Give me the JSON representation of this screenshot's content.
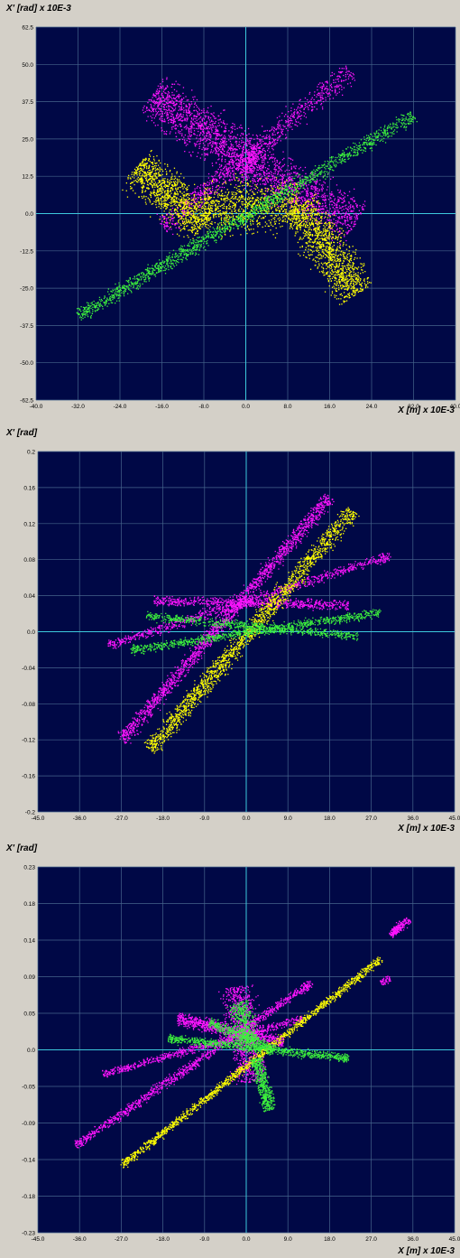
{
  "colors": {
    "background": "#d4d0c8",
    "plot_area": "#000846",
    "grid": "#46648c",
    "axis": "#3cc8dc",
    "magenta": "#ff14ff",
    "yellow": "#ffff00",
    "green": "#3cf03c"
  },
  "chart_data": [
    {
      "type": "scatter",
      "ylabel": "X' [rad] x 10E-3",
      "xlabel": "X [m] x 10E-3",
      "xlim": [
        -40,
        40
      ],
      "ylim": [
        -62.5,
        62.5
      ],
      "x_ticks": [
        "-40.0",
        "-32.0",
        "-24.0",
        "-16.0",
        "-8.0",
        "0.0",
        "8.0",
        "16.0",
        "24.0",
        "32.0",
        "40.0"
      ],
      "y_ticks": [
        "62.5",
        "50.0",
        "37.5",
        "25.0",
        "12.5",
        "0.0",
        "-12.5",
        "-25.0",
        "-37.5",
        "-50.0",
        "-62.5"
      ],
      "grid": true,
      "series": [
        {
          "color": "magenta",
          "clusters": [
            {
              "type": "band",
              "from": [
                -18,
                40
              ],
              "to": [
                2,
                16
              ],
              "width": 11,
              "n": 1300
            },
            {
              "type": "band",
              "from": [
                0,
                18
              ],
              "to": [
                21,
                -3
              ],
              "width": 11,
              "n": 1100
            },
            {
              "type": "band",
              "from": [
                -16,
                -4
              ],
              "to": [
                20,
                48
              ],
              "width": 5,
              "n": 900
            }
          ]
        },
        {
          "color": "yellow",
          "clusters": [
            {
              "type": "band",
              "from": [
                -21,
                16
              ],
              "to": [
                -8,
                -4
              ],
              "width": 10,
              "n": 1100
            },
            {
              "type": "band",
              "from": [
                -8,
                2
              ],
              "to": [
                10,
                3
              ],
              "width": 12,
              "n": 900
            },
            {
              "type": "band",
              "from": [
                10,
                3
              ],
              "to": [
                21,
                -27
              ],
              "width": 10,
              "n": 1200
            }
          ]
        },
        {
          "color": "green",
          "clusters": [
            {
              "type": "band",
              "from": [
                -32,
                -34
              ],
              "to": [
                32,
                33
              ],
              "width": 3.5,
              "n": 1600
            }
          ]
        }
      ]
    },
    {
      "type": "scatter",
      "ylabel": "X' [rad]",
      "xlabel": "X [m] x 10E-3",
      "xlim": [
        -45,
        45
      ],
      "ylim": [
        -0.2,
        0.2
      ],
      "x_ticks": [
        "-45.0",
        "-36.0",
        "-27.0",
        "-18.0",
        "-9.0",
        "0.0",
        "9.0",
        "18.0",
        "27.0",
        "36.0",
        "45.0"
      ],
      "y_ticks": [
        "0.2",
        "0.16",
        "0.12",
        "0.08",
        "0.04",
        "0.0",
        "-0.04",
        "-0.08",
        "-0.12",
        "-0.16",
        "-0.2"
      ],
      "grid": true,
      "series": [
        {
          "color": "magenta",
          "clusters": [
            {
              "type": "band",
              "from": [
                -27,
                -0.12
              ],
              "to": [
                18,
                0.15
              ],
              "width": 0.011,
              "n": 1700
            },
            {
              "type": "band",
              "from": [
                -30,
                -0.015
              ],
              "to": [
                31,
                0.085
              ],
              "width": 0.008,
              "n": 900
            },
            {
              "type": "band",
              "from": [
                -20,
                0.035
              ],
              "to": [
                22,
                0.03
              ],
              "width": 0.008,
              "n": 700
            }
          ]
        },
        {
          "color": "yellow",
          "clusters": [
            {
              "type": "band",
              "from": [
                -21,
                -0.13
              ],
              "to": [
                23,
                0.135
              ],
              "width": 0.014,
              "n": 1800
            }
          ]
        },
        {
          "color": "green",
          "clusters": [
            {
              "type": "band",
              "from": [
                -25,
                -0.02
              ],
              "to": [
                29,
                0.022
              ],
              "width": 0.007,
              "n": 900
            },
            {
              "type": "band",
              "from": [
                -22,
                0.018
              ],
              "to": [
                24,
                -0.005
              ],
              "width": 0.007,
              "n": 700
            }
          ]
        }
      ]
    },
    {
      "type": "scatter",
      "ylabel": "X' [rad]",
      "xlabel": "X [m] x 10E-3",
      "xlim": [
        -45,
        45
      ],
      "ylim": [
        -0.23,
        0.23
      ],
      "x_ticks": [
        "-45.0",
        "-36.0",
        "-27.0",
        "-18.0",
        "-9.0",
        "0.0",
        "9.0",
        "18.0",
        "27.0",
        "36.0",
        "45.0"
      ],
      "y_ticks": [
        "0.23",
        "0.18",
        "0.14",
        "0.09",
        "0.05",
        "0.0",
        "-0.05",
        "-0.09",
        "-0.14",
        "-0.18",
        "-0.23"
      ],
      "grid": true,
      "series": [
        {
          "color": "magenta",
          "clusters": [
            {
              "type": "band",
              "from": [
                -37,
                -0.12
              ],
              "to": [
                14,
                0.085
              ],
              "width": 0.008,
              "n": 1100
            },
            {
              "type": "band",
              "from": [
                -31,
                -0.03
              ],
              "to": [
                12,
                0.04
              ],
              "width": 0.007,
              "n": 700
            },
            {
              "type": "band",
              "from": [
                -15,
                0.04
              ],
              "to": [
                8,
                0.01
              ],
              "width": 0.012,
              "n": 800
            },
            {
              "type": "band",
              "from": [
                -2,
                0.08
              ],
              "to": [
                1,
                -0.04
              ],
              "width": 0.03,
              "n": 900
            },
            {
              "type": "band",
              "from": [
                31,
                0.145
              ],
              "to": [
                35,
                0.165
              ],
              "width": 0.008,
              "n": 200
            },
            {
              "type": "band",
              "from": [
                29,
                0.085
              ],
              "to": [
                31,
                0.09
              ],
              "width": 0.006,
              "n": 50
            }
          ]
        },
        {
          "color": "yellow",
          "clusters": [
            {
              "type": "band",
              "from": [
                -27,
                -0.145
              ],
              "to": [
                29,
                0.115
              ],
              "width": 0.007,
              "n": 1400
            }
          ]
        },
        {
          "color": "green",
          "clusters": [
            {
              "type": "band",
              "from": [
                -17,
                0.015
              ],
              "to": [
                22,
                -0.01
              ],
              "width": 0.008,
              "n": 900
            },
            {
              "type": "band",
              "from": [
                -8,
                0.035
              ],
              "to": [
                6,
                0.0
              ],
              "width": 0.01,
              "n": 500
            },
            {
              "type": "band",
              "from": [
                2,
                -0.01
              ],
              "to": [
                5,
                -0.075
              ],
              "width": 0.012,
              "n": 500
            },
            {
              "type": "band",
              "from": [
                -2,
                0.06
              ],
              "to": [
                1,
                0.01
              ],
              "width": 0.02,
              "n": 400
            }
          ]
        }
      ]
    }
  ]
}
